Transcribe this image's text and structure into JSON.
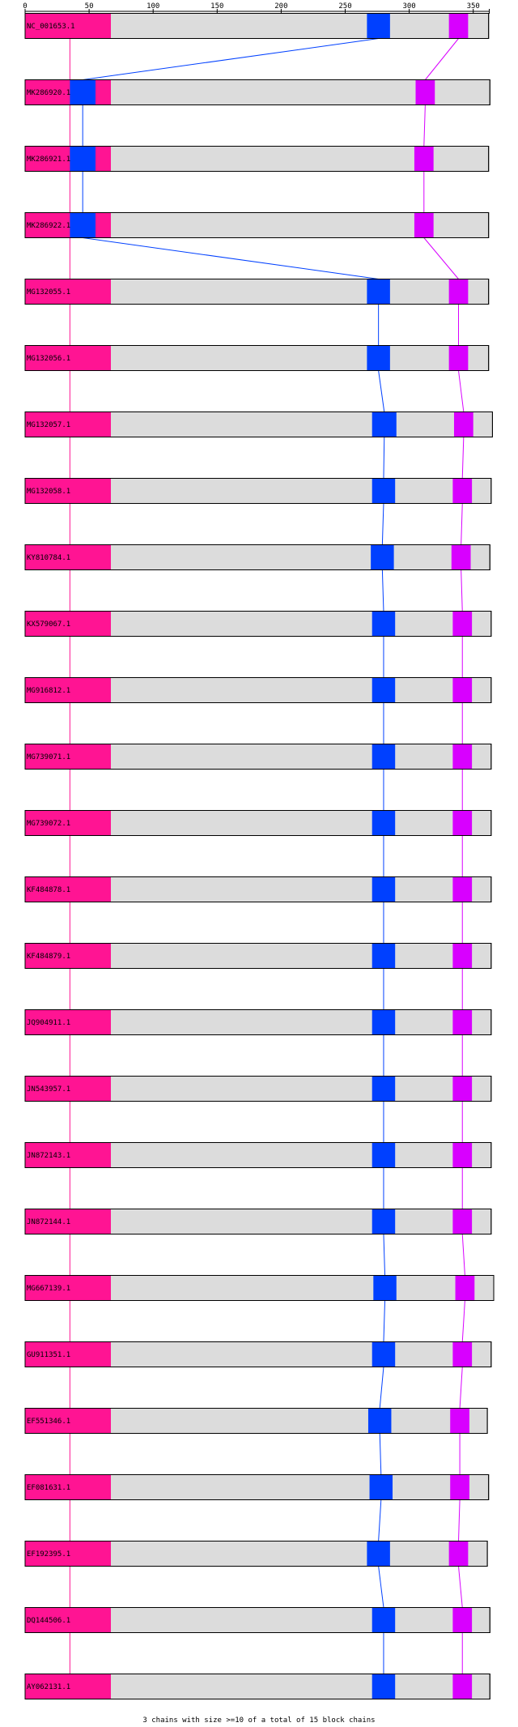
{
  "axis": {
    "min": 0,
    "max": 360,
    "ticks": [
      {
        "value": 0,
        "label": "0"
      },
      {
        "value": 50,
        "label": "50"
      },
      {
        "value": 100,
        "label": "100"
      },
      {
        "value": 150,
        "label": "150"
      },
      {
        "value": 200,
        "label": "200"
      },
      {
        "value": 250,
        "label": "250"
      },
      {
        "value": 300,
        "label": "300"
      },
      {
        "value": 350,
        "label": "350"
      }
    ]
  },
  "colors": {
    "bar_fill": "#dcdcdc",
    "bar_stroke": "#000000",
    "block1": "#ff1493",
    "block2": "#0040ff",
    "block3": "#d800ff",
    "link1": "#ff1493",
    "link2": "#0040ff",
    "link3": "#d800ff"
  },
  "sequences": [
    {
      "label": "NC_001653.1",
      "length": 362,
      "blocks": [
        [
          0,
          67
        ],
        [
          267,
          285
        ],
        [
          331,
          346
        ]
      ]
    },
    {
      "label": "MK286920.1",
      "length": 363,
      "blocks": [
        [
          0,
          67
        ],
        [
          35,
          55
        ],
        [
          305,
          320
        ]
      ]
    },
    {
      "label": "MK286921.1",
      "length": 362,
      "blocks": [
        [
          0,
          67
        ],
        [
          35,
          55
        ],
        [
          304,
          319
        ]
      ]
    },
    {
      "label": "MK286922.1",
      "length": 362,
      "blocks": [
        [
          0,
          67
        ],
        [
          35,
          55
        ],
        [
          304,
          319
        ]
      ]
    },
    {
      "label": "MG132055.1",
      "length": 362,
      "blocks": [
        [
          0,
          67
        ],
        [
          267,
          285
        ],
        [
          331,
          346
        ]
      ]
    },
    {
      "label": "MG132056.1",
      "length": 362,
      "blocks": [
        [
          0,
          67
        ],
        [
          267,
          285
        ],
        [
          331,
          346
        ]
      ]
    },
    {
      "label": "MG132057.1",
      "length": 365,
      "blocks": [
        [
          0,
          67
        ],
        [
          271,
          290
        ],
        [
          335,
          350
        ]
      ]
    },
    {
      "label": "MG132058.1",
      "length": 364,
      "blocks": [
        [
          0,
          67
        ],
        [
          271,
          289
        ],
        [
          334,
          349
        ]
      ]
    },
    {
      "label": "KY810784.1",
      "length": 363,
      "blocks": [
        [
          0,
          67
        ],
        [
          270,
          288
        ],
        [
          333,
          348
        ]
      ]
    },
    {
      "label": "KX579067.1",
      "length": 364,
      "blocks": [
        [
          0,
          67
        ],
        [
          271,
          289
        ],
        [
          334,
          349
        ]
      ]
    },
    {
      "label": "MG916812.1",
      "length": 364,
      "blocks": [
        [
          0,
          67
        ],
        [
          271,
          289
        ],
        [
          334,
          349
        ]
      ]
    },
    {
      "label": "MG739071.1",
      "length": 364,
      "blocks": [
        [
          0,
          67
        ],
        [
          271,
          289
        ],
        [
          334,
          349
        ]
      ]
    },
    {
      "label": "MG739072.1",
      "length": 364,
      "blocks": [
        [
          0,
          67
        ],
        [
          271,
          289
        ],
        [
          334,
          349
        ]
      ]
    },
    {
      "label": "KF484878.1",
      "length": 364,
      "blocks": [
        [
          0,
          67
        ],
        [
          271,
          289
        ],
        [
          334,
          349
        ]
      ]
    },
    {
      "label": "KF484879.1",
      "length": 364,
      "blocks": [
        [
          0,
          67
        ],
        [
          271,
          289
        ],
        [
          334,
          349
        ]
      ]
    },
    {
      "label": "JQ904911.1",
      "length": 364,
      "blocks": [
        [
          0,
          67
        ],
        [
          271,
          289
        ],
        [
          334,
          349
        ]
      ]
    },
    {
      "label": "JN543957.1",
      "length": 364,
      "blocks": [
        [
          0,
          67
        ],
        [
          271,
          289
        ],
        [
          334,
          349
        ]
      ]
    },
    {
      "label": "JN872143.1",
      "length": 364,
      "blocks": [
        [
          0,
          67
        ],
        [
          271,
          289
        ],
        [
          334,
          349
        ]
      ]
    },
    {
      "label": "JN872144.1",
      "length": 364,
      "blocks": [
        [
          0,
          67
        ],
        [
          271,
          289
        ],
        [
          334,
          349
        ]
      ]
    },
    {
      "label": "MG667139.1",
      "length": 366,
      "blocks": [
        [
          0,
          67
        ],
        [
          272,
          290
        ],
        [
          336,
          351
        ]
      ]
    },
    {
      "label": "GU911351.1",
      "length": 364,
      "blocks": [
        [
          0,
          67
        ],
        [
          271,
          289
        ],
        [
          334,
          349
        ]
      ]
    },
    {
      "label": "EF551346.1",
      "length": 361,
      "blocks": [
        [
          0,
          67
        ],
        [
          268,
          286
        ],
        [
          332,
          347
        ]
      ]
    },
    {
      "label": "EF081631.1",
      "length": 362,
      "blocks": [
        [
          0,
          67
        ],
        [
          269,
          287
        ],
        [
          332,
          347
        ]
      ]
    },
    {
      "label": "EF192395.1",
      "length": 361,
      "blocks": [
        [
          0,
          67
        ],
        [
          267,
          285
        ],
        [
          331,
          346
        ]
      ]
    },
    {
      "label": "DQ144506.1",
      "length": 363,
      "blocks": [
        [
          0,
          67
        ],
        [
          271,
          289
        ],
        [
          334,
          349
        ]
      ]
    },
    {
      "label": "AY062131.1",
      "length": 363,
      "blocks": [
        [
          0,
          67
        ],
        [
          271,
          289
        ],
        [
          334,
          349
        ]
      ]
    }
  ],
  "footer": "3 chains with size >=10 of a total of 15 block chains"
}
